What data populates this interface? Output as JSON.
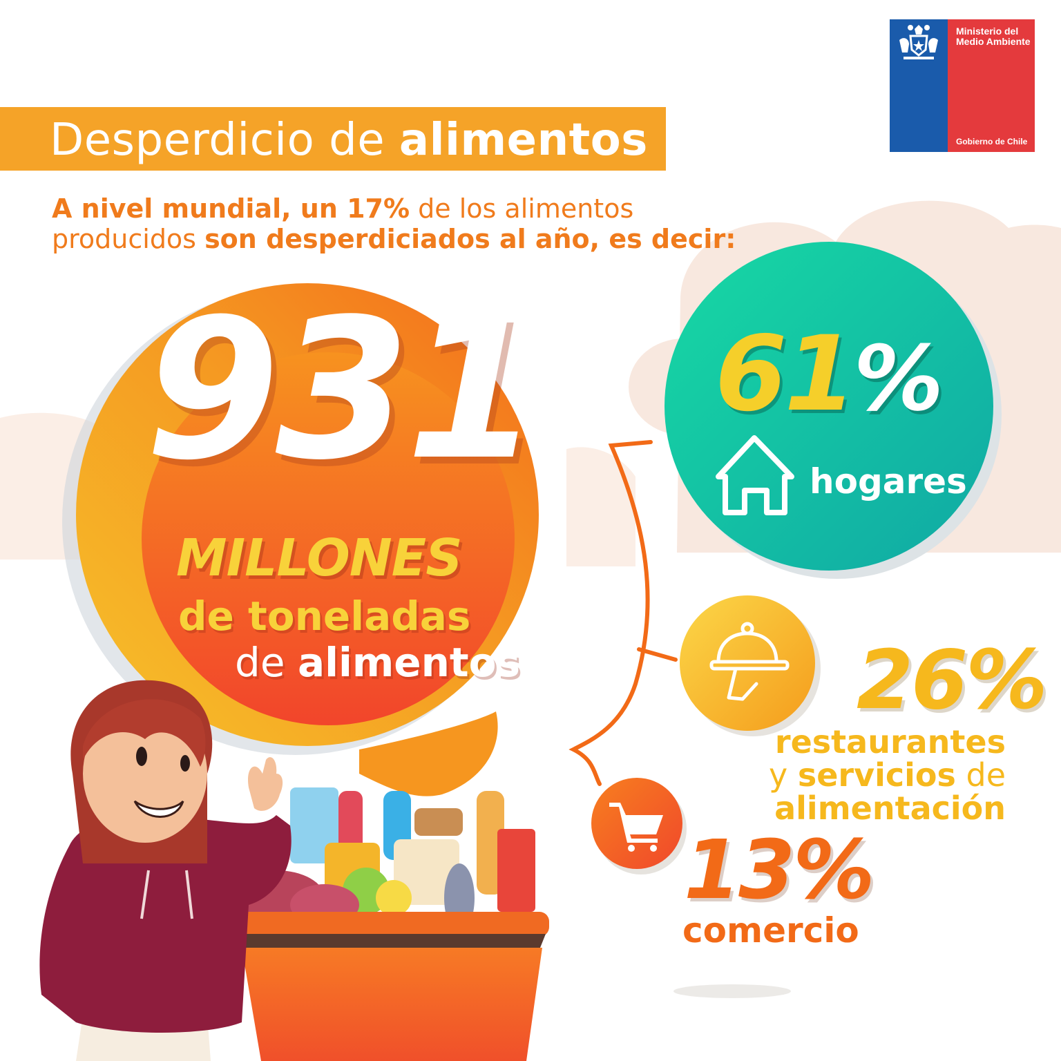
{
  "brand": {
    "ministry": "Ministerio del Medio Ambiente",
    "government": "Gobierno de Chile",
    "blue": "#1a5bab",
    "red": "#e43a3d"
  },
  "title": {
    "prefix": "Desperdicio de",
    "highlight": "alimentos"
  },
  "subtitle": {
    "line1_bold": "A nivel mundial, un 17%",
    "line1_rest": " de los alimentos",
    "line2_plain": "producidos ",
    "line2_bold": "son desperdiciados al año, es decir:"
  },
  "main_stat": {
    "value": "931",
    "unit": "MILLONES",
    "line2": "de toneladas",
    "line3_plain": "de ",
    "line3_bold": "alimentos"
  },
  "breakdown": [
    {
      "percent_number": "61",
      "percent_sign": "%",
      "label": "hogares",
      "icon": "house-icon"
    },
    {
      "percent": "26%",
      "label_line1": "restaurantes",
      "label_line2_plain_start": "y ",
      "label_line2_bold": "servicios",
      "label_line2_plain_end": " de",
      "label_line3": "alimentación",
      "icon": "serving-cloche-icon"
    },
    {
      "percent": "13%",
      "label": "comercio",
      "icon": "shopping-cart-icon"
    }
  ],
  "colors": {
    "title_banner": "#f5a328",
    "orange": "#f07b1c",
    "teal": "#1bbfa3",
    "yellow": "#f5cf2a",
    "amber": "#f6b81d",
    "deep_orange": "#f26a17"
  }
}
